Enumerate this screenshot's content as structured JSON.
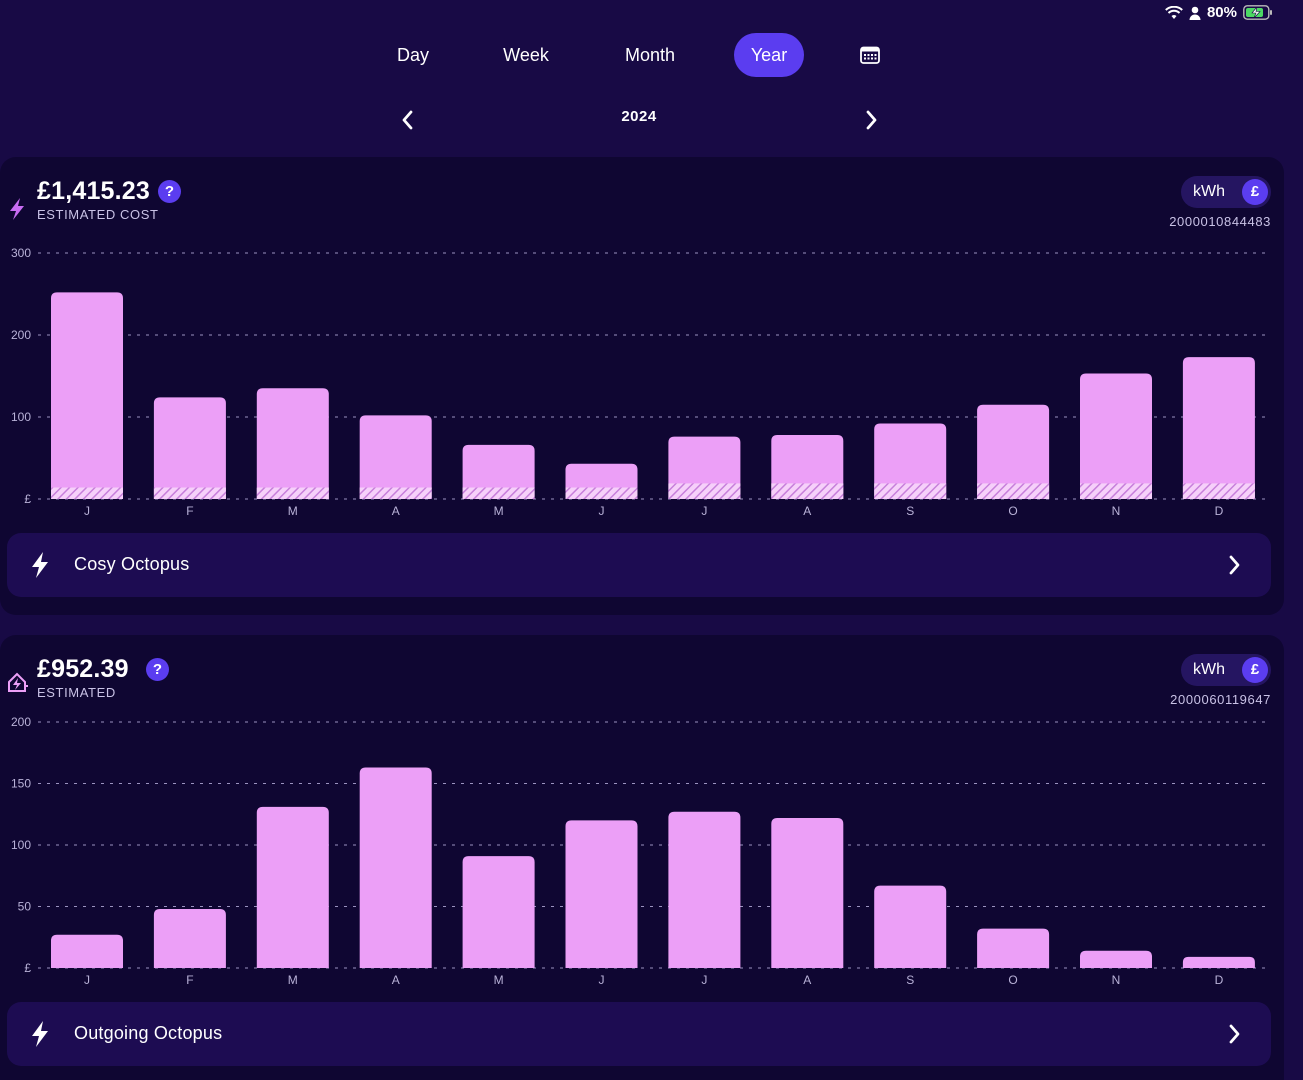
{
  "status_bar": {
    "battery": "80%",
    "icons": [
      "wifi-icon",
      "person-icon",
      "battery-charging-icon"
    ]
  },
  "tabs": [
    {
      "label": "Day",
      "active": false
    },
    {
      "label": "Week",
      "active": false
    },
    {
      "label": "Month",
      "active": false
    },
    {
      "label": "Year",
      "active": true
    }
  ],
  "calendar_icon": "calendar-icon",
  "period": {
    "label": "2024",
    "prev_icon": "chevron-left-icon",
    "next_icon": "chevron-right-icon"
  },
  "accent_color": "#5b3df0",
  "bar_color": "#ec9ff7",
  "cards": [
    {
      "id": "electric",
      "icon": "lightning-bolt-icon",
      "amount": "£1,415.23",
      "amount_caption": "ESTIMATED COST",
      "help_label": "?",
      "unit_toggle": {
        "kwh": "kWh",
        "gbp": "£",
        "selected": "£"
      },
      "meter_number": "2000010844483",
      "tariff": {
        "name": "Cosy Octopus",
        "icon": "lightning-bolt-icon",
        "chevron": "chevron-right-icon"
      }
    },
    {
      "id": "export",
      "icon": "solar-home-icon",
      "amount": "£952.39",
      "amount_caption": "ESTIMATED",
      "help_label": "?",
      "unit_toggle": {
        "kwh": "kWh",
        "gbp": "£",
        "selected": "£"
      },
      "meter_number": "2000060119647",
      "tariff": {
        "name": "Outgoing Octopus",
        "icon": "lightning-bolt-icon",
        "chevron": "chevron-right-icon"
      }
    }
  ],
  "chart_data": [
    {
      "type": "bar",
      "categories": [
        "J",
        "F",
        "M",
        "A",
        "M",
        "J",
        "J",
        "A",
        "S",
        "O",
        "N",
        "D"
      ],
      "yticks": [
        "£",
        "100",
        "200",
        "300"
      ],
      "ylim": [
        0,
        300
      ],
      "grid": true,
      "series": [
        {
          "values": [
            252,
            124,
            135,
            102,
            66,
            43,
            76,
            78,
            92,
            115,
            153,
            173
          ]
        },
        {
          "values": [
            14,
            14,
            14,
            14,
            14,
            14,
            19,
            19,
            19,
            19,
            19,
            19
          ],
          "style": "hatched"
        }
      ]
    },
    {
      "type": "bar",
      "categories": [
        "J",
        "F",
        "M",
        "A",
        "M",
        "J",
        "J",
        "A",
        "S",
        "O",
        "N",
        "D"
      ],
      "yticks": [
        "£",
        "50",
        "100",
        "150",
        "200"
      ],
      "ylim": [
        0,
        200
      ],
      "grid": true,
      "series": [
        {
          "values": [
            27,
            48,
            131,
            163,
            91,
            120,
            127,
            122,
            67,
            32,
            14,
            9
          ]
        }
      ]
    }
  ]
}
